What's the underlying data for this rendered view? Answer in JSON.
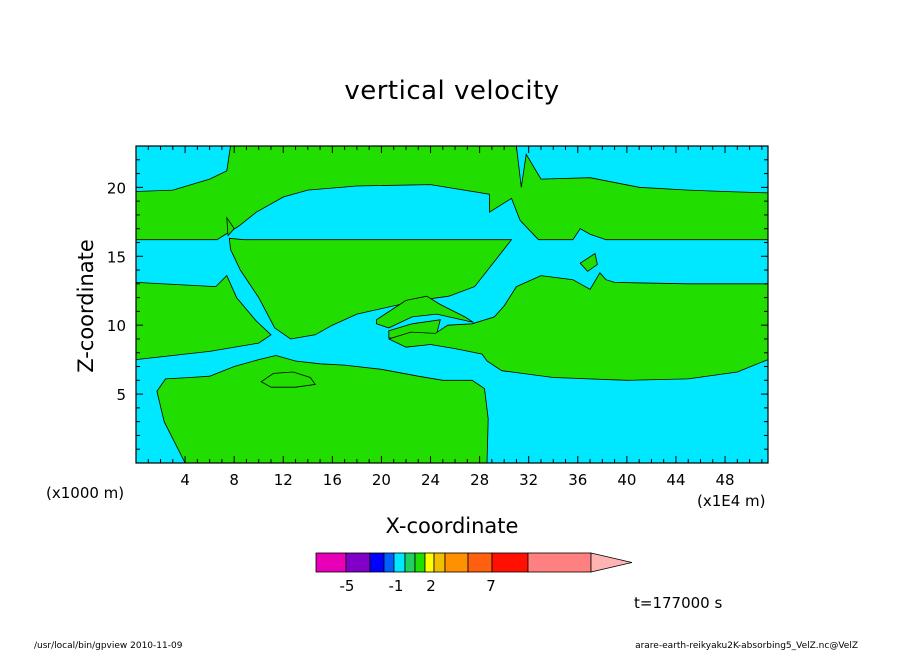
{
  "chart_data": {
    "type": "heatmap",
    "title": "vertical velocity",
    "xlabel": "X-coordinate",
    "ylabel": "Z-coordinate",
    "x_unit_left": "(x1000 m)",
    "x_unit_right": "(x1E4 m)",
    "xlim": [
      0,
      51.5
    ],
    "ylim": [
      0,
      23
    ],
    "x_ticks": [
      "4",
      "8",
      "12",
      "16",
      "20",
      "24",
      "28",
      "32",
      "36",
      "40",
      "44",
      "48"
    ],
    "y_ticks": [
      "5",
      "10",
      "15",
      "20"
    ],
    "x_tick_values": [
      4,
      8,
      12,
      16,
      20,
      24,
      28,
      32,
      36,
      40,
      44,
      48
    ],
    "y_tick_values": [
      5,
      10,
      15,
      20
    ],
    "regions": [
      {
        "level": "negative",
        "color": "#00e8ff",
        "polygons": [
          [
            [
              0,
              0
            ],
            [
              51.5,
              0
            ],
            [
              51.5,
              23
            ],
            [
              0,
              23
            ]
          ]
        ]
      },
      {
        "level": "positive",
        "color": "#22dd00",
        "polygons": [
          [
            [
              0,
              19.7
            ],
            [
              3,
              19.8
            ],
            [
              6,
              20.6
            ],
            [
              7.4,
              21.2
            ],
            [
              7.7,
              23
            ],
            [
              31,
              23
            ],
            [
              31.4,
              20
            ],
            [
              31.8,
              22.4
            ],
            [
              33,
              20.6
            ],
            [
              37,
              20.7
            ],
            [
              41,
              20
            ],
            [
              45,
              19.8
            ],
            [
              48,
              19.7
            ],
            [
              51.5,
              19.6
            ],
            [
              51.5,
              16.2
            ],
            [
              38.3,
              16.2
            ],
            [
              37,
              16.6
            ],
            [
              36.2,
              17
            ],
            [
              35.6,
              16.2
            ],
            [
              32.8,
              16.2
            ],
            [
              31.3,
              17.6
            ],
            [
              30.6,
              19.2
            ],
            [
              28.8,
              18.2
            ],
            [
              28.8,
              19.5
            ],
            [
              24,
              20.2
            ],
            [
              18,
              20.1
            ],
            [
              14,
              19.8
            ],
            [
              12,
              19.3
            ],
            [
              9.8,
              18.2
            ],
            [
              8.4,
              17.2
            ],
            [
              6.6,
              16.2
            ],
            [
              0,
              16.2
            ]
          ],
          [
            [
              7.6,
              16.3
            ],
            [
              8.8,
              16.2
            ],
            [
              30.6,
              16.2
            ],
            [
              27.6,
              12.8
            ],
            [
              25.5,
              12.1
            ],
            [
              23,
              11.8
            ],
            [
              18,
              10.8
            ],
            [
              16,
              10
            ],
            [
              14.6,
              9.3
            ],
            [
              12.6,
              9
            ],
            [
              11.3,
              9.8
            ],
            [
              10,
              12
            ],
            [
              8.5,
              14
            ],
            [
              7.7,
              15.5
            ]
          ],
          [
            [
              0,
              13.1
            ],
            [
              6.5,
              12.8
            ],
            [
              7.4,
              13.6
            ],
            [
              8.2,
              12
            ],
            [
              9.8,
              10.3
            ],
            [
              11,
              9.3
            ],
            [
              10,
              8.7
            ],
            [
              6,
              8.1
            ],
            [
              3,
              7.8
            ],
            [
              0,
              7.5
            ]
          ],
          [
            [
              19.6,
              10.4
            ],
            [
              22,
              11.8
            ],
            [
              23.7,
              12.1
            ],
            [
              24.8,
              11.5
            ],
            [
              26.8,
              10.6
            ],
            [
              27.5,
              10.2
            ],
            [
              24.5,
              10.8
            ],
            [
              22.5,
              10.6
            ],
            [
              20.6,
              9.8
            ],
            [
              19.6,
              10.1
            ]
          ],
          [
            [
              20.6,
              9.6
            ],
            [
              22.5,
              10.1
            ],
            [
              24.8,
              10.4
            ],
            [
              24.4,
              9
            ],
            [
              22.2,
              8.7
            ],
            [
              20.6,
              9.1
            ]
          ],
          [
            [
              31,
              12.8
            ],
            [
              33,
              13.6
            ],
            [
              35.6,
              13.3
            ],
            [
              37,
              12.6
            ],
            [
              37.8,
              13.8
            ],
            [
              38.3,
              13.3
            ],
            [
              39,
              13.1
            ],
            [
              45,
              13
            ],
            [
              51.5,
              13
            ],
            [
              51.5,
              7.5
            ],
            [
              49,
              6.6
            ],
            [
              45,
              6.1
            ],
            [
              40,
              6
            ],
            [
              34,
              6.2
            ],
            [
              29.8,
              6.7
            ],
            [
              28.6,
              7.4
            ],
            [
              28.2,
              7.9
            ],
            [
              26,
              8.3
            ],
            [
              24,
              8.6
            ],
            [
              22,
              8.4
            ],
            [
              20.6,
              9
            ],
            [
              22.4,
              9.5
            ],
            [
              24.4,
              9.4
            ],
            [
              25.4,
              10
            ],
            [
              27.4,
              10.1
            ],
            [
              29.2,
              10.6
            ],
            [
              30,
              11.4
            ]
          ],
          [
            [
              11.4,
              7.8
            ],
            [
              13,
              7.4
            ],
            [
              15,
              7.2
            ],
            [
              17,
              7.1
            ],
            [
              20,
              6.8
            ],
            [
              23,
              6.3
            ],
            [
              25,
              6
            ],
            [
              27.4,
              6
            ],
            [
              28.4,
              5.4
            ],
            [
              28.7,
              3.2
            ],
            [
              28.6,
              0
            ],
            [
              4,
              0
            ],
            [
              2.3,
              3
            ],
            [
              1.7,
              5.2
            ],
            [
              2.4,
              6.1
            ],
            [
              4.4,
              6.2
            ],
            [
              6,
              6.3
            ],
            [
              8,
              7
            ],
            [
              10,
              7.5
            ]
          ],
          [
            [
              7.4,
              17.8
            ],
            [
              8,
              17
            ],
            [
              7.5,
              16.5
            ]
          ],
          [
            [
              10.2,
              5.9
            ],
            [
              11.2,
              6.5
            ],
            [
              12.8,
              6.6
            ],
            [
              14.2,
              6.2
            ],
            [
              14.6,
              5.7
            ],
            [
              13,
              5.5
            ],
            [
              11,
              5.5
            ]
          ],
          [
            [
              36.2,
              14.5
            ],
            [
              37.4,
              15.2
            ],
            [
              37.6,
              14.4
            ],
            [
              36.8,
              13.9
            ]
          ]
        ]
      }
    ],
    "colorbar": {
      "colors": [
        "#e800b8",
        "#8000c8",
        "#0000ff",
        "#0060ff",
        "#00e8ff",
        "#20d060",
        "#22dd00",
        "#ffff00",
        "#f0c000",
        "#ff9000",
        "#ff6010",
        "#ff1000",
        "#ff8080",
        "#ffb4b4"
      ],
      "labels": [
        "-5",
        "-1",
        "2",
        "7"
      ],
      "label_index": [
        1,
        4,
        7.5,
        10.5
      ]
    }
  },
  "time_label": "t=177000 s",
  "footer_left": "/usr/local/bin/gpview  2010-11-09",
  "footer_right": "arare-earth-reikyaku2K-absorbing5_VelZ.nc@VelZ"
}
